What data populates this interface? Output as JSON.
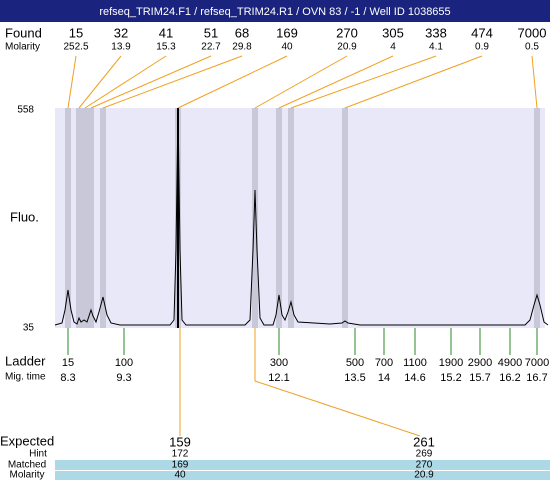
{
  "title": "refseq_TRIM24.F1 / refseq_TRIM24.R1 / OVN 83 / -1 / Well ID 1038655",
  "labels": {
    "found": "Found",
    "molarity": "Molarity",
    "fluo": "Fluo.",
    "ladder": "Ladder",
    "mig_time": "Mig. time",
    "expected": "Expected",
    "hint": "Hint",
    "matched": "Matched",
    "exp_molarity": "Molarity"
  },
  "y_axis": {
    "max": 558,
    "min": 35
  },
  "found": [
    {
      "size": 15,
      "molarity": 252.5
    },
    {
      "size": 32,
      "molarity": 13.9
    },
    {
      "size": 41,
      "molarity": 15.3
    },
    {
      "size": 51,
      "molarity": 22.7
    },
    {
      "size": 68,
      "molarity": 29.8
    },
    {
      "size": 169,
      "molarity": 40
    },
    {
      "size": 270,
      "molarity": 20.9
    },
    {
      "size": 305,
      "molarity": 4
    },
    {
      "size": 338,
      "molarity": 4.1
    },
    {
      "size": 474,
      "molarity": 0.9
    },
    {
      "size": 7000,
      "molarity": 0.5
    }
  ],
  "ladder": [
    {
      "size": 15,
      "time": 8.3
    },
    {
      "size": 100,
      "time": 9.3
    },
    {
      "size": 300,
      "time": 12.1
    },
    {
      "size": 500,
      "time": 13.5
    },
    {
      "size": 700,
      "time": 14
    },
    {
      "size": 1100,
      "time": 14.6
    },
    {
      "size": 1900,
      "time": 15.2
    },
    {
      "size": 2900,
      "time": 15.7
    },
    {
      "size": 4900,
      "time": 16.2
    },
    {
      "size": 7000,
      "time": 16.7
    }
  ],
  "expected": [
    {
      "expected": 159,
      "hint": 172,
      "matched": 169,
      "molarity": 40
    },
    {
      "expected": 261,
      "hint": 269,
      "matched": 270,
      "molarity": 20.9
    }
  ]
}
